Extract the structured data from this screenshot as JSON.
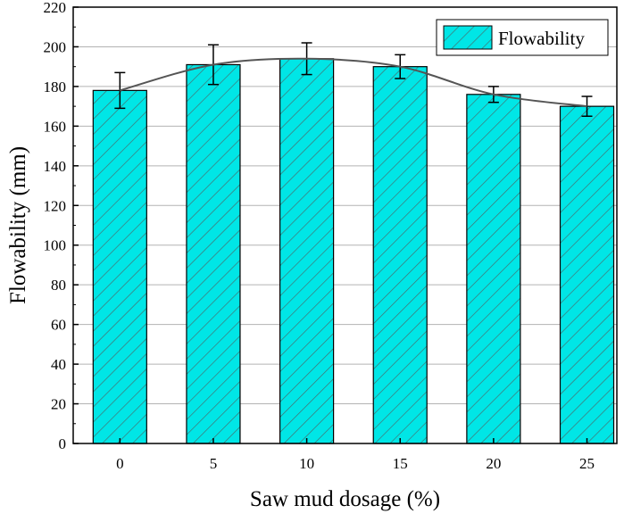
{
  "chart_data": {
    "type": "bar",
    "xlabel": "Saw mud dosage (%)",
    "ylabel": "Flowability (mm)",
    "categories": [
      "0",
      "5",
      "10",
      "15",
      "20",
      "25"
    ],
    "series": [
      {
        "name": "Flowability",
        "values": [
          178,
          191,
          194,
          190,
          176,
          170
        ],
        "error": [
          9,
          10,
          8,
          6,
          4,
          5
        ]
      }
    ],
    "ylim": [
      0,
      220
    ],
    "yticks": [
      0,
      20,
      40,
      60,
      80,
      100,
      120,
      140,
      160,
      180,
      200,
      220
    ],
    "trend_line": true,
    "bar_fill": "hatched",
    "bar_color": "#00e6e6",
    "hatch_color": "#4a6a6a",
    "grid": "horizontal",
    "legend_position": "top-right"
  }
}
